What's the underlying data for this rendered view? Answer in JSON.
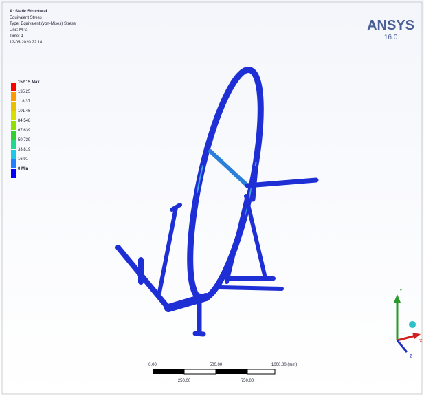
{
  "header": {
    "lines": [
      "A: Static Structural",
      "Equivalent Stress",
      "Type: Equivalent (von-Mises) Stress",
      "Unit: MPa",
      "Time: 1",
      "12-05-2020 22:18"
    ]
  },
  "legend": {
    "labels": [
      "152.15 Max",
      "135.25",
      "118.37",
      "101.46",
      "84.548",
      "67.639",
      "50.729",
      "33.819",
      "16.91",
      "0 Min"
    ]
  },
  "logo": {
    "name": "ANSYS",
    "version": "16.0"
  },
  "scale_bar": {
    "top_labels": [
      "0.00",
      "500.00",
      "1000.00 (mm)"
    ],
    "bottom_labels": [
      "250.00",
      "750.00"
    ]
  },
  "triad": {
    "y": "Y",
    "x": "X",
    "z": "Z"
  }
}
